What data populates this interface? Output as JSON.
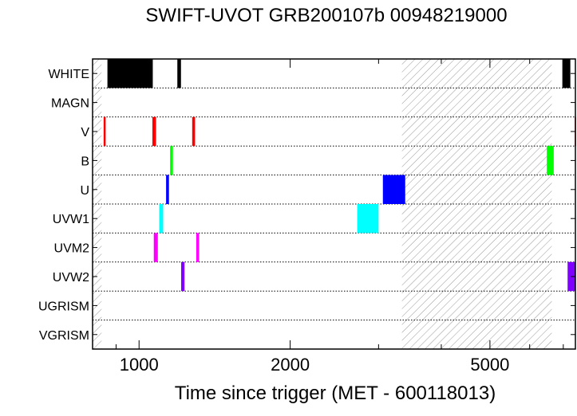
{
  "chart_data": {
    "type": "timeline",
    "title": "SWIFT-UVOT GRB200107b 00948219000",
    "xlabel": "Time since trigger (MET - 600118013)",
    "xscale": "log",
    "xlim": [
      808,
      7400
    ],
    "xticks": [
      1000,
      2000,
      5000
    ],
    "xticklabels": [
      "1000",
      "2000",
      "5000"
    ],
    "filters": [
      "WHITE",
      "MAGN",
      "V",
      "B",
      "U",
      "UVW1",
      "UVM2",
      "UVW2",
      "UGRISM",
      "VGRISM"
    ],
    "exposures": [
      {
        "filter": "WHITE",
        "color": "#000000",
        "start": 865,
        "end": 1065
      },
      {
        "filter": "WHITE",
        "color": "#000000",
        "start": 1192,
        "end": 1212
      },
      {
        "filter": "WHITE",
        "color": "#000000",
        "start": 6970,
        "end": 7230
      },
      {
        "filter": "V",
        "color": "#ff0000",
        "start": 850,
        "end": 858
      },
      {
        "filter": "V",
        "color": "#ff0000",
        "start": 1063,
        "end": 1081
      },
      {
        "filter": "V",
        "color": "#ff0000",
        "start": 1276,
        "end": 1293
      },
      {
        "filter": "V",
        "color": "#ff0000",
        "start": 7380,
        "end": 7400
      },
      {
        "filter": "B",
        "color": "#00ff00",
        "start": 1153,
        "end": 1168
      },
      {
        "filter": "B",
        "color": "#00ff00",
        "start": 6490,
        "end": 6700
      },
      {
        "filter": "U",
        "color": "#0000ff",
        "start": 1132,
        "end": 1147
      },
      {
        "filter": "U",
        "color": "#0000ff",
        "start": 3060,
        "end": 3390
      },
      {
        "filter": "UVW1",
        "color": "#00ffff",
        "start": 1097,
        "end": 1117
      },
      {
        "filter": "UVW1",
        "color": "#00ffff",
        "start": 2720,
        "end": 3000
      },
      {
        "filter": "UVM2",
        "color": "#ff00ff",
        "start": 1070,
        "end": 1090
      },
      {
        "filter": "UVM2",
        "color": "#ff00ff",
        "start": 1300,
        "end": 1317
      },
      {
        "filter": "UVW2",
        "color": "#7f00ff",
        "start": 1213,
        "end": 1232
      },
      {
        "filter": "UVW2",
        "color": "#7f00ff",
        "start": 7140,
        "end": 7390
      }
    ],
    "hatched_intervals": [
      {
        "start": 808,
        "end": 842
      },
      {
        "start": 3340,
        "end": 6640
      }
    ]
  }
}
